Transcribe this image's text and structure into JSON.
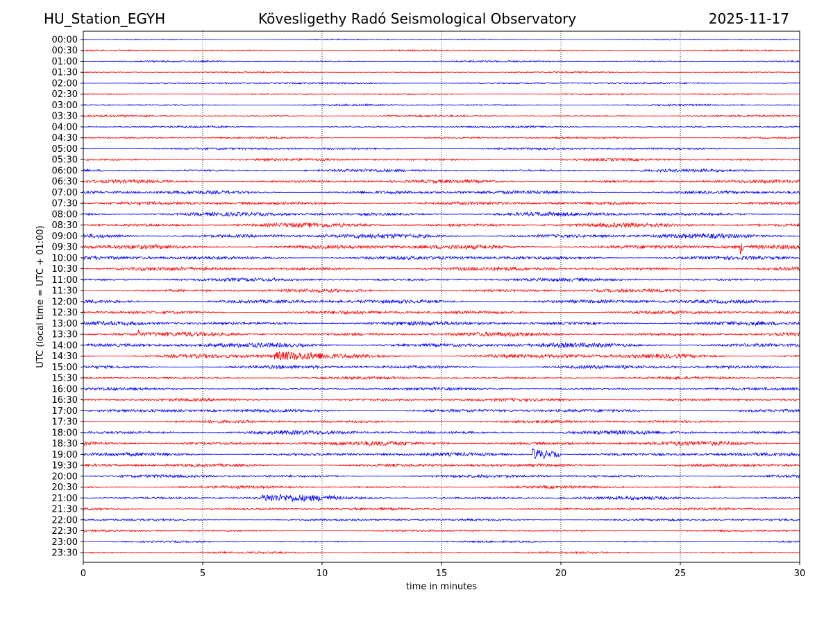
{
  "header": {
    "station": "HU_Station_EGYH",
    "observatory": "Kövesligethy Radó Seismological Observatory",
    "date": "2025-11-17"
  },
  "chart_data": {
    "type": "line",
    "subtype": "helicorder",
    "xlabel": "time in minutes",
    "ylabel": "UTC (local time = UTC + 01:00)",
    "xlim": [
      0,
      30
    ],
    "x_ticks": [
      "0",
      "5",
      "10",
      "15",
      "20",
      "25",
      "30"
    ],
    "x_grid": "dotted vertical at 5, 10, 15, 20, 25",
    "colors": {
      "even_rows": "#0000ff",
      "odd_rows": "#ff0000"
    },
    "rows": [
      "00:00",
      "00:30",
      "01:00",
      "01:30",
      "02:00",
      "02:30",
      "03:00",
      "03:30",
      "04:00",
      "04:30",
      "05:00",
      "05:30",
      "06:00",
      "06:30",
      "07:00",
      "07:30",
      "08:00",
      "08:30",
      "09:00",
      "09:30",
      "10:00",
      "10:30",
      "11:00",
      "11:30",
      "12:00",
      "12:30",
      "13:00",
      "13:30",
      "14:00",
      "14:30",
      "15:00",
      "15:30",
      "16:00",
      "16:30",
      "17:00",
      "17:30",
      "18:00",
      "18:30",
      "19:00",
      "19:30",
      "20:00",
      "20:30",
      "21:00",
      "21:30",
      "22:00",
      "22:30",
      "23:00",
      "23:30"
    ],
    "noise_level": [
      0.8,
      0.9,
      1.0,
      0.9,
      0.9,
      0.9,
      1.1,
      1.2,
      1.2,
      1.2,
      1.4,
      1.6,
      1.8,
      2.0,
      2.2,
      2.0,
      2.4,
      2.6,
      2.8,
      2.8,
      2.4,
      2.2,
      2.0,
      2.0,
      2.4,
      2.2,
      2.4,
      2.6,
      2.8,
      2.8,
      2.2,
      1.6,
      1.6,
      1.8,
      2.0,
      1.8,
      2.4,
      2.6,
      2.2,
      2.0,
      1.8,
      1.6,
      2.0,
      1.4,
      1.4,
      1.2,
      1.1,
      1.2
    ],
    "events": [
      {
        "row": "09:30",
        "minute": 27.5,
        "amplitude": 9
      },
      {
        "row": "19:00",
        "minute": 18.8,
        "amplitude": 8,
        "duration_min": 1.2
      },
      {
        "row": "13:30",
        "minute": 2.3,
        "amplitude": 5
      },
      {
        "row": "14:30",
        "minute": 8.0,
        "amplitude": 5,
        "duration_min": 2.5
      },
      {
        "row": "21:00",
        "minute": 7.5,
        "amplitude": 4,
        "duration_min": 3
      }
    ]
  }
}
